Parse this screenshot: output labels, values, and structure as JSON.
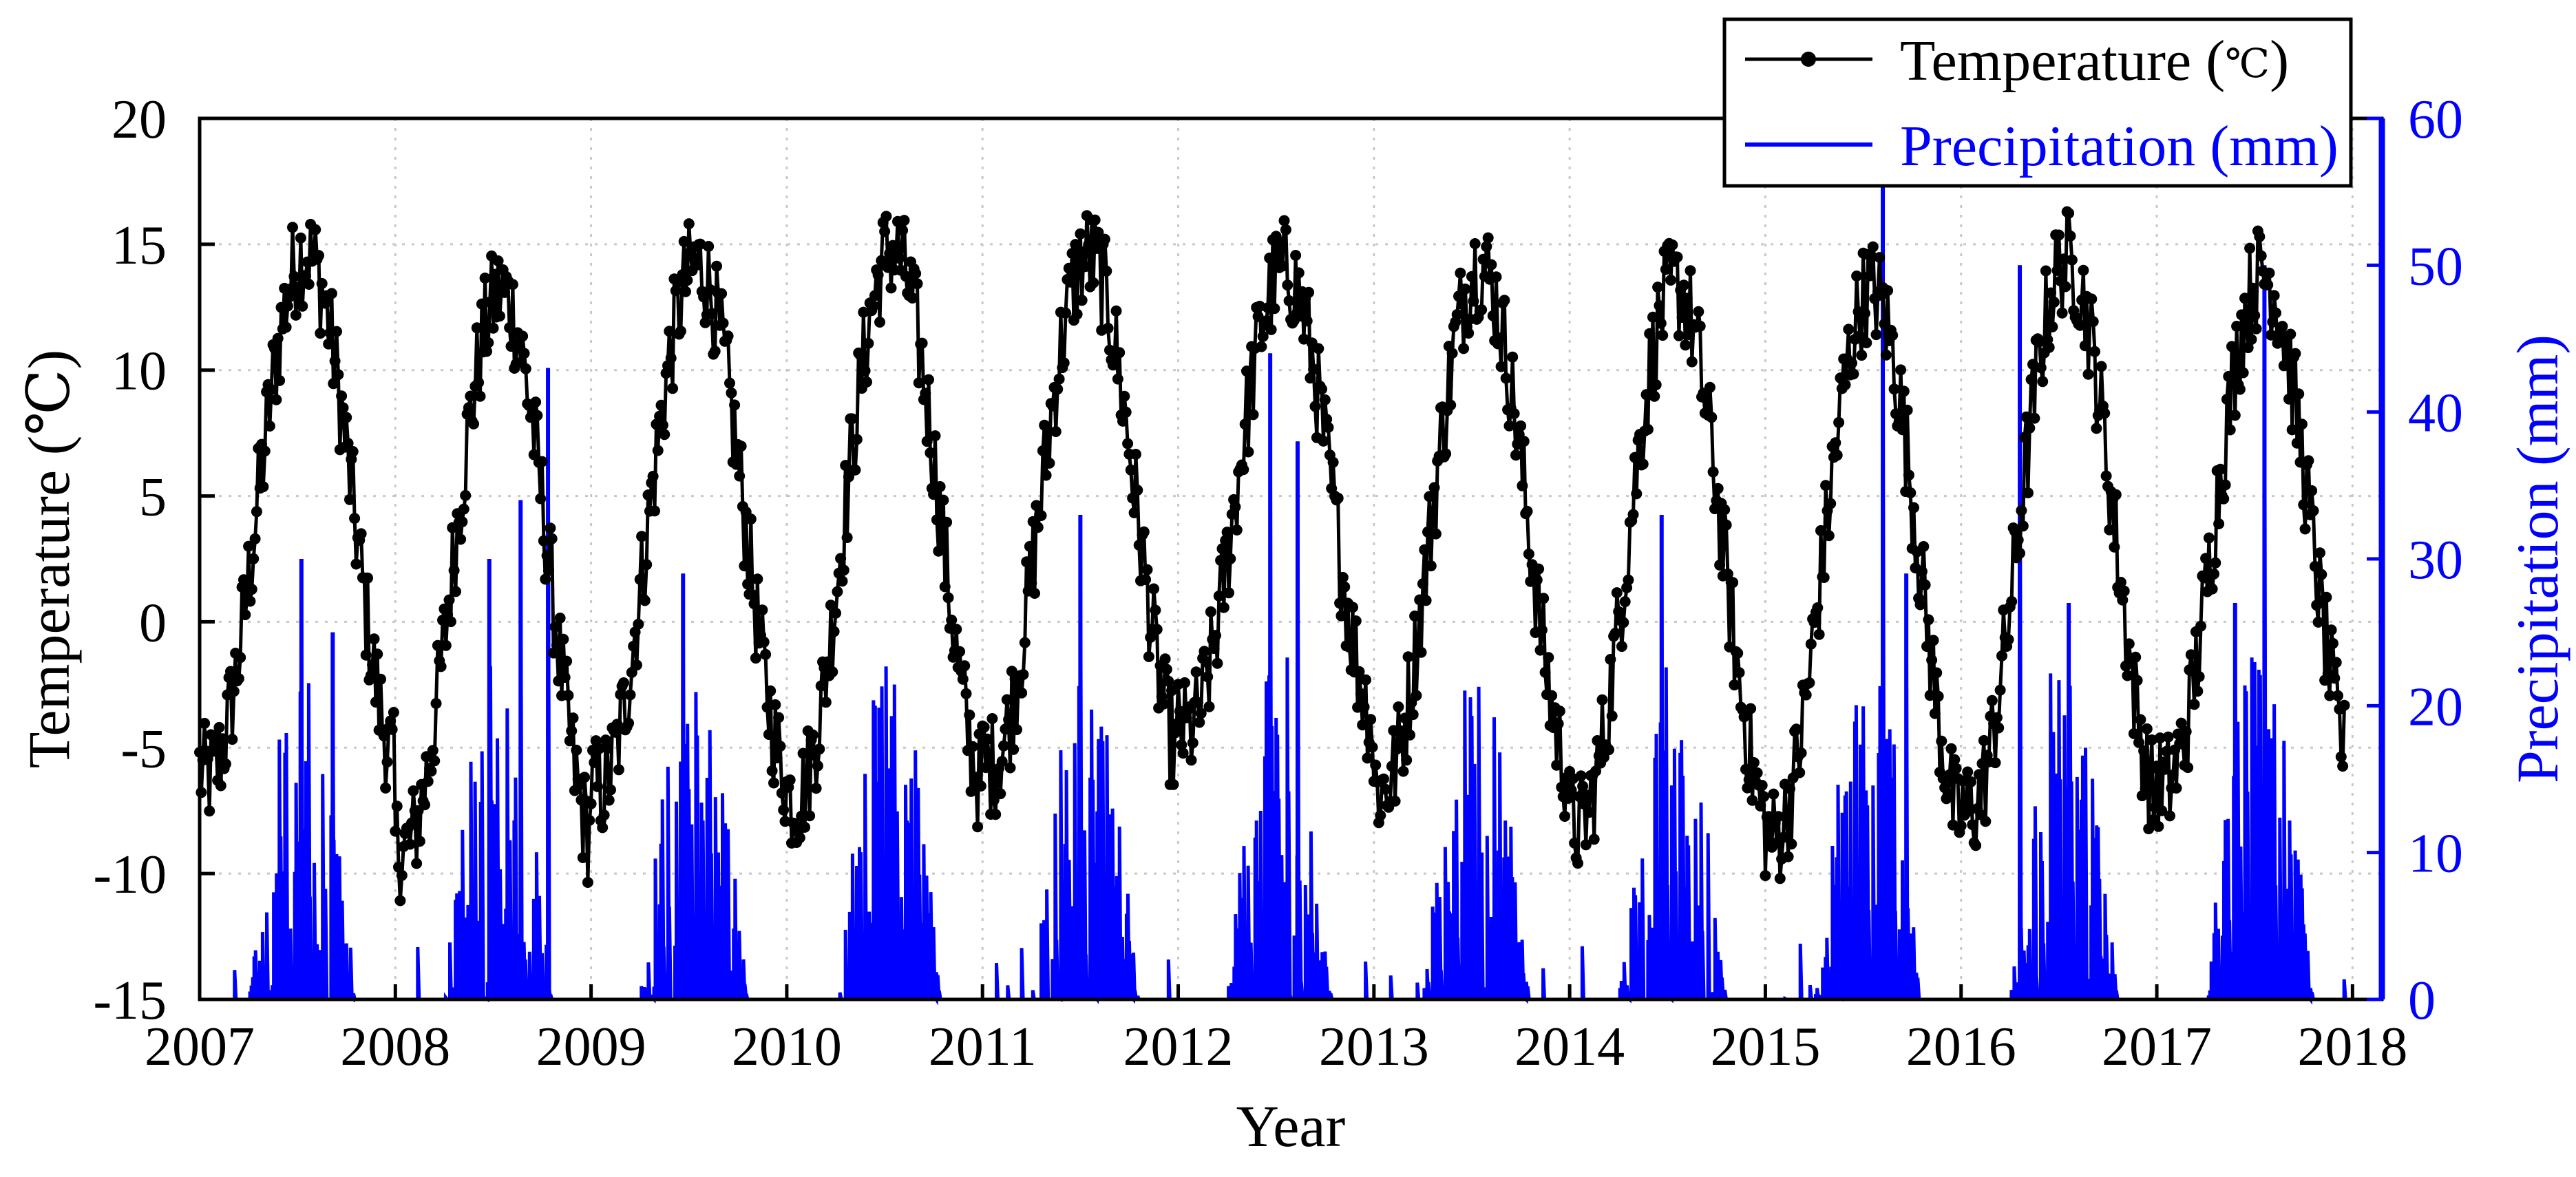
{
  "chart_data": {
    "type": "line",
    "x_label": "Year",
    "y_left_label": "Temperature  (℃)",
    "y_right_label": "Precipitation (mm)",
    "x_ticks": [
      "2007",
      "2008",
      "2009",
      "2010",
      "2011",
      "2012",
      "2013",
      "2014",
      "2015",
      "2016",
      "2017",
      "2018"
    ],
    "x_range": [
      2007,
      2018.15
    ],
    "y_left_ticks": [
      "20",
      "15",
      "10",
      "5",
      "0",
      "-5",
      "-10",
      "-15"
    ],
    "y_left_range": [
      -15,
      20
    ],
    "y_right_ticks": [
      "60",
      "50",
      "40",
      "30",
      "20",
      "10",
      "0"
    ],
    "y_right_range": [
      0,
      60
    ],
    "grid": "dotted",
    "legend_position": "top-right",
    "series": [
      {
        "name": "Temperature (℃)",
        "axis": "left",
        "color": "#000000",
        "marker": "circle",
        "annual_profile_note": "daily mean temperature, seasonal cycle",
        "yearly_max": [
          16.5,
          15.0,
          16.0,
          16.7,
          16.3,
          15.6,
          16.0,
          15.2,
          15.1,
          16.3,
          15.6
        ],
        "yearly_min": [
          -8.0,
          -11.0,
          -8.5,
          -9.0,
          -7.5,
          -6.0,
          -8.5,
          -10.0,
          -10.5,
          -9.5,
          -8.3
        ],
        "end_value": -4.5
      },
      {
        "name": "Precipitation (mm)",
        "axis": "right",
        "color": "#0000ff",
        "peaks": [
          {
            "x": 2007.52,
            "y": 30
          },
          {
            "x": 2007.68,
            "y": 25
          },
          {
            "x": 2008.48,
            "y": 30
          },
          {
            "x": 2008.64,
            "y": 34
          },
          {
            "x": 2008.78,
            "y": 43
          },
          {
            "x": 2009.47,
            "y": 29
          },
          {
            "x": 2010.45,
            "y": 20
          },
          {
            "x": 2011.5,
            "y": 33
          },
          {
            "x": 2012.47,
            "y": 44
          },
          {
            "x": 2012.61,
            "y": 38
          },
          {
            "x": 2013.55,
            "y": 10
          },
          {
            "x": 2014.47,
            "y": 33
          },
          {
            "x": 2015.6,
            "y": 56
          },
          {
            "x": 2015.72,
            "y": 29
          },
          {
            "x": 2016.3,
            "y": 50
          },
          {
            "x": 2016.55,
            "y": 27
          },
          {
            "x": 2017.55,
            "y": 50
          },
          {
            "x": 2017.4,
            "y": 27
          }
        ]
      }
    ]
  },
  "legend": {
    "temp_label": "Temperature (",
    "temp_unit": "℃",
    "temp_close": ")",
    "precip_label": "Precipitation (mm)"
  },
  "colors": {
    "temperature": "#000000",
    "precipitation": "#0000ff",
    "grid": "#c8c8c8"
  }
}
